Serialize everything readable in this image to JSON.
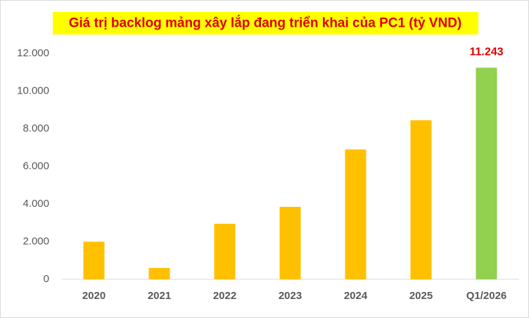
{
  "chart_data": {
    "type": "bar",
    "title": "Giá trị backlog mảng xây lắp đang triển khai của PC1 (tỷ VND)",
    "categories": [
      "2020",
      "2021",
      "2022",
      "2023",
      "2024",
      "2025",
      "Q1/2026"
    ],
    "values": [
      2000,
      600,
      2950,
      3850,
      6900,
      8450,
      11243
    ],
    "value_labels": [
      null,
      null,
      null,
      null,
      null,
      null,
      "11.243"
    ],
    "colors": [
      "#ffc000",
      "#ffc000",
      "#ffc000",
      "#ffc000",
      "#ffc000",
      "#ffc000",
      "#92d050"
    ],
    "value_label_color": "#e00000",
    "title_color": "#e00000",
    "title_background": "#ffff00",
    "ylim": [
      0,
      12000
    ],
    "yticks": [
      0,
      {
        "value": 2000,
        "label": "2.000"
      },
      {
        "value": 4000,
        "label": "4.000"
      },
      {
        "value": 6000,
        "label": "6.000"
      },
      {
        "value": 8000,
        "label": "8.000"
      },
      {
        "value": 10000,
        "label": "10.000"
      },
      {
        "value": 12000,
        "label": "12.000"
      }
    ],
    "grid": false
  }
}
